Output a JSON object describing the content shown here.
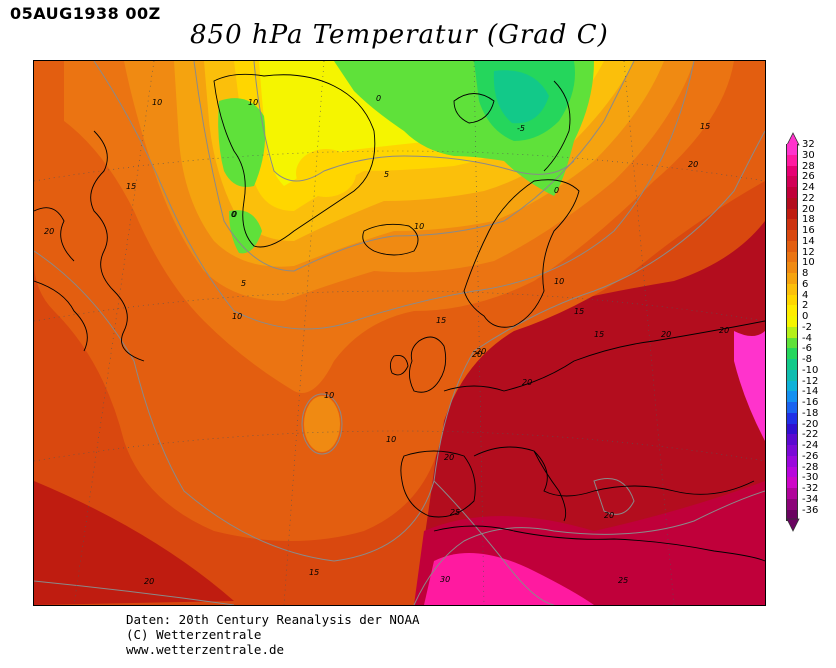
{
  "header": {
    "datetime": "05AUG1938 00Z",
    "title": "850 hPa Temperatur (Grad C)"
  },
  "map": {
    "variable": "850 hPa temperature",
    "unit": "Grad C",
    "contour_labels": [
      "10",
      "10",
      "0",
      "0",
      "-5",
      "0",
      "15",
      "15",
      "20",
      "5",
      "10",
      "0",
      "20",
      "15",
      "5",
      "10",
      "20",
      "10",
      "15",
      "20",
      "20",
      "20",
      "15",
      "10",
      "10",
      "20",
      "20",
      "25",
      "20",
      "30",
      "25",
      "20",
      "15"
    ]
  },
  "colorbar": {
    "labels": [
      "32",
      "30",
      "28",
      "26",
      "24",
      "22",
      "20",
      "18",
      "16",
      "14",
      "12",
      "10",
      "8",
      "6",
      "4",
      "2",
      "0",
      "-2",
      "-4",
      "-6",
      "-8",
      "-10",
      "-12",
      "-14",
      "-16",
      "-18",
      "-20",
      "-22",
      "-24",
      "-26",
      "-28",
      "-30",
      "-32",
      "-34",
      "-36"
    ],
    "colors": [
      "#ff33cc",
      "#ff1aa0",
      "#e60073",
      "#d10056",
      "#c0003a",
      "#b30d1e",
      "#bf1c10",
      "#cc3210",
      "#d9480f",
      "#e35e10",
      "#eb7412",
      "#f08a12",
      "#f5a30f",
      "#fbbf0b",
      "#ffd600",
      "#ffec00",
      "#f5f500",
      "#b5ef1a",
      "#5fe13a",
      "#25d65c",
      "#12c989",
      "#10bdb0",
      "#0fb1d8",
      "#1490f0",
      "#1a63f0",
      "#2030e6",
      "#3010d0",
      "#5a0ad0",
      "#7a0ad6",
      "#9a08dc",
      "#b806dc",
      "#ce06c8",
      "#b0049a",
      "#8c0478",
      "#6a0460"
    ]
  },
  "credits": {
    "line1": "Daten: 20th Century Reanalysis der NOAA",
    "line2": "(C) Wetterzentrale",
    "line3": "www.wetterzentrale.de"
  }
}
